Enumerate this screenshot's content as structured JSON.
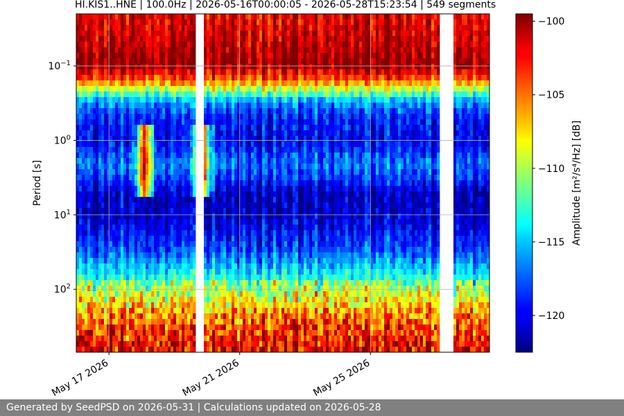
{
  "footer": {
    "text": "Generated by SeedPSD on 2026-05-31 | Calculations updated on 2026-05-28"
  },
  "chart_data": {
    "type": "heatmap",
    "title": "HI.KIS1..HNE | 100.0Hz | 2026-05-16T00:00:05 - 2026-05-28T15:23:54 | 549 segments",
    "ylabel": "Period [s]",
    "xlabel": "",
    "colorbar_label": "Amplitude [m²/s⁴/Hz] [dB]",
    "x_range": [
      "2026-05-16T00:00:05",
      "2026-05-28T15:23:54"
    ],
    "x_ticks": [
      {
        "date": "2026-05-17",
        "label": "May 17 2026"
      },
      {
        "date": "2026-05-21",
        "label": "May 21 2026"
      },
      {
        "date": "2026-05-25",
        "label": "May 25 2026"
      }
    ],
    "y_scale": "log",
    "y_inverted": true,
    "y_range_s": [
      0.02,
      700
    ],
    "y_ticks": [
      {
        "value": 0.1,
        "base": "10",
        "exp": "−1"
      },
      {
        "value": 1,
        "base": "10",
        "exp": "0"
      },
      {
        "value": 10,
        "base": "10",
        "exp": "1"
      },
      {
        "value": 100,
        "base": "10",
        "exp": "2"
      }
    ],
    "colorbar": {
      "colormap": "jet",
      "range_db": [
        -122.5,
        -99.5
      ],
      "ticks": [
        -100,
        -105,
        -110,
        -115,
        -120
      ]
    },
    "grid": true,
    "data_gaps": [
      {
        "start": "2026-05-19T16:00:00",
        "end": "2026-05-19T22:00:00"
      },
      {
        "start": "2026-05-27T02:00:00",
        "end": "2026-05-27T12:30:00"
      }
    ],
    "spectrogram_profile": {
      "period_s": [
        0.02,
        0.05,
        0.08,
        0.1,
        0.15,
        0.3,
        0.5,
        1,
        2,
        3,
        5,
        10,
        30,
        100,
        300,
        700
      ],
      "amplitude_db": [
        -102,
        -101,
        -100,
        -100,
        -104,
        -116,
        -119,
        -120,
        -117,
        -118,
        -121,
        -121,
        -118,
        -111,
        -105,
        -103
      ]
    }
  }
}
